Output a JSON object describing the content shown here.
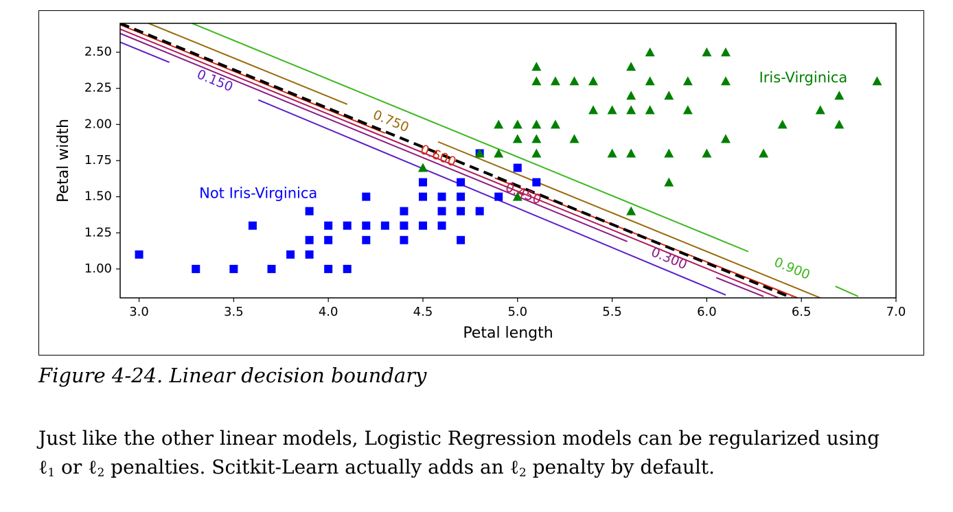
{
  "caption": "Figure 4-24. Linear decision boundary",
  "paragraph": {
    "line1": "Just like the other linear models, Logistic Regression models can be regularized using",
    "ell": "ℓ",
    "sub1": "1",
    "sub2": "2",
    "or": " or ",
    "part2": " penalties. Scitkit-Learn actually adds an ",
    "part3": " penalty by default."
  },
  "chart_data": {
    "type": "scatter",
    "title": "",
    "xlabel": "Petal length",
    "ylabel": "Petal width",
    "xlim": [
      2.9,
      7.0
    ],
    "ylim": [
      0.8,
      2.7
    ],
    "xticks": [
      "3.0",
      "3.5",
      "4.0",
      "4.5",
      "5.0",
      "5.5",
      "6.0",
      "6.5",
      "7.0"
    ],
    "yticks": [
      "1.00",
      "1.25",
      "1.50",
      "1.75",
      "2.00",
      "2.25",
      "2.50"
    ],
    "grid": false,
    "series": [
      {
        "name": "Not Iris-Virginica",
        "marker": "square",
        "color": "#0000ff",
        "points": [
          [
            3.0,
            1.1
          ],
          [
            3.3,
            1.0
          ],
          [
            3.5,
            1.0
          ],
          [
            3.6,
            1.3
          ],
          [
            3.7,
            1.0
          ],
          [
            3.8,
            1.1
          ],
          [
            3.9,
            1.4
          ],
          [
            3.9,
            1.2
          ],
          [
            3.9,
            1.1
          ],
          [
            4.0,
            1.3
          ],
          [
            4.0,
            1.2
          ],
          [
            4.0,
            1.0
          ],
          [
            4.1,
            1.3
          ],
          [
            4.1,
            1.0
          ],
          [
            4.2,
            1.5
          ],
          [
            4.2,
            1.3
          ],
          [
            4.2,
            1.2
          ],
          [
            4.3,
            1.3
          ],
          [
            4.4,
            1.4
          ],
          [
            4.4,
            1.3
          ],
          [
            4.4,
            1.2
          ],
          [
            4.5,
            1.6
          ],
          [
            4.5,
            1.5
          ],
          [
            4.5,
            1.3
          ],
          [
            4.6,
            1.5
          ],
          [
            4.6,
            1.4
          ],
          [
            4.6,
            1.3
          ],
          [
            4.7,
            1.6
          ],
          [
            4.7,
            1.5
          ],
          [
            4.7,
            1.4
          ],
          [
            4.7,
            1.2
          ],
          [
            4.8,
            1.8
          ],
          [
            4.8,
            1.4
          ],
          [
            4.9,
            1.5
          ],
          [
            5.0,
            1.7
          ],
          [
            5.1,
            1.6
          ]
        ]
      },
      {
        "name": "Iris-Virginica",
        "marker": "triangle",
        "color": "#008000",
        "points": [
          [
            4.5,
            1.7
          ],
          [
            4.8,
            1.8
          ],
          [
            4.9,
            2.0
          ],
          [
            4.9,
            1.8
          ],
          [
            5.0,
            2.0
          ],
          [
            5.0,
            1.9
          ],
          [
            5.0,
            1.5
          ],
          [
            5.1,
            2.4
          ],
          [
            5.1,
            2.3
          ],
          [
            5.1,
            2.0
          ],
          [
            5.1,
            1.9
          ],
          [
            5.1,
            1.8
          ],
          [
            5.2,
            2.3
          ],
          [
            5.2,
            2.0
          ],
          [
            5.3,
            2.3
          ],
          [
            5.3,
            1.9
          ],
          [
            5.4,
            2.3
          ],
          [
            5.4,
            2.1
          ],
          [
            5.5,
            2.1
          ],
          [
            5.5,
            1.8
          ],
          [
            5.6,
            2.4
          ],
          [
            5.6,
            2.2
          ],
          [
            5.6,
            2.1
          ],
          [
            5.6,
            1.8
          ],
          [
            5.6,
            1.4
          ],
          [
            5.7,
            2.5
          ],
          [
            5.7,
            2.3
          ],
          [
            5.7,
            2.1
          ],
          [
            5.8,
            2.2
          ],
          [
            5.8,
            1.8
          ],
          [
            5.8,
            1.6
          ],
          [
            5.9,
            2.3
          ],
          [
            5.9,
            2.1
          ],
          [
            6.0,
            2.5
          ],
          [
            6.0,
            1.8
          ],
          [
            6.1,
            2.5
          ],
          [
            6.1,
            2.3
          ],
          [
            6.1,
            1.9
          ],
          [
            6.3,
            1.8
          ],
          [
            6.4,
            2.0
          ],
          [
            6.6,
            2.1
          ],
          [
            6.7,
            2.2
          ],
          [
            6.7,
            2.0
          ],
          [
            6.9,
            2.3
          ]
        ]
      }
    ],
    "contours": [
      {
        "label": "0.150",
        "color": "#5a1fc8",
        "segments": [
          [
            [
              2.9,
              2.57
            ],
            [
              3.16,
              2.43
            ]
          ],
          [
            [
              3.63,
              2.17
            ],
            [
              6.1,
              0.82
            ]
          ]
        ],
        "label_at": [
          3.4,
          2.3
        ]
      },
      {
        "label": "0.300",
        "color": "#8c1a84",
        "segments": [
          [
            [
              2.9,
              2.63
            ],
            [
              5.58,
              1.19
            ]
          ],
          [
            [
              6.05,
              0.94
            ],
            [
              6.3,
              0.81
            ]
          ]
        ],
        "label_at": [
          5.8,
          1.07
        ]
      },
      {
        "label": "0.450",
        "color": "#b0195a",
        "segments": [
          [
            [
              2.9,
              2.66
            ],
            [
              6.38,
              0.8
            ]
          ]
        ],
        "label_at": [
          5.03,
          1.52
        ]
      },
      {
        "label": "0.600",
        "color": "#d62a10",
        "segments": [
          [
            [
              2.9,
              2.69
            ],
            [
              4.3,
              1.94
            ]
          ],
          [
            [
              4.88,
              1.63
            ],
            [
              6.48,
              0.8
            ]
          ]
        ],
        "label_at": [
          4.58,
          1.78
        ]
      },
      {
        "label": "0.750",
        "color": "#9a6a0a",
        "segments": [
          [
            [
              3.05,
              2.7
            ],
            [
              4.1,
              2.14
            ]
          ],
          [
            [
              4.58,
              1.88
            ],
            [
              6.6,
              0.8
            ]
          ]
        ],
        "label_at": [
          4.33,
          2.02
        ]
      },
      {
        "label": "0.900",
        "color": "#3cb81e",
        "segments": [
          [
            [
              3.28,
              2.7
            ],
            [
              6.22,
              1.12
            ]
          ],
          [
            [
              6.68,
              0.88
            ],
            [
              6.8,
              0.81
            ]
          ]
        ],
        "label_at": [
          6.45,
          1.0
        ]
      }
    ],
    "decision_boundary": {
      "style": "dashed",
      "color": "#000000",
      "points": [
        [
          2.9,
          2.7
        ],
        [
          6.45,
          0.8
        ]
      ]
    },
    "annotations": [
      {
        "text": "Not Iris-Virginica",
        "color": "#0000ff",
        "at": [
          3.63,
          1.52
        ]
      },
      {
        "text": "Iris-Virginica",
        "color": "#008000",
        "at": [
          6.51,
          2.32
        ]
      }
    ]
  }
}
